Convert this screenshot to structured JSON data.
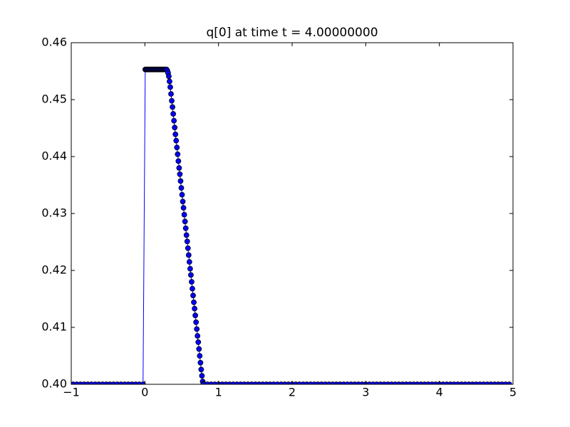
{
  "chart_data": {
    "type": "line",
    "title": "q[0] at time t =     4.00000000",
    "color": "#0000ff",
    "marker_edge_color": "#000000",
    "xlim": [
      -1,
      5
    ],
    "ylim": [
      0.4,
      0.46
    ],
    "xticks": [
      {
        "value": -1,
        "label": "−1"
      },
      0,
      1,
      2,
      3,
      4,
      5
    ],
    "yticks": [
      {
        "value": 0.4,
        "label": "0.40"
      },
      0.41,
      0.42,
      0.43,
      0.44,
      0.45,
      0.46
    ],
    "x": [
      -0.975,
      -0.925,
      -0.875,
      -0.825,
      -0.775,
      -0.725,
      -0.675,
      -0.625,
      -0.575,
      -0.525,
      -0.475,
      -0.425,
      -0.375,
      -0.325,
      -0.275,
      -0.225,
      -0.175,
      -0.125,
      -0.075,
      -0.025,
      0.005,
      0.015,
      0.025,
      0.035,
      0.045,
      0.055,
      0.065,
      0.075,
      0.085,
      0.095,
      0.105,
      0.115,
      0.125,
      0.135,
      0.145,
      0.155,
      0.165,
      0.175,
      0.185,
      0.195,
      0.205,
      0.215,
      0.225,
      0.235,
      0.245,
      0.255,
      0.265,
      0.275,
      0.285,
      0.295,
      0.305,
      0.315,
      0.325,
      0.335,
      0.345,
      0.355,
      0.365,
      0.375,
      0.385,
      0.395,
      0.405,
      0.415,
      0.425,
      0.435,
      0.445,
      0.455,
      0.465,
      0.475,
      0.485,
      0.495,
      0.505,
      0.515,
      0.525,
      0.535,
      0.545,
      0.555,
      0.565,
      0.575,
      0.585,
      0.595,
      0.605,
      0.615,
      0.625,
      0.635,
      0.645,
      0.655,
      0.665,
      0.675,
      0.685,
      0.695,
      0.705,
      0.715,
      0.725,
      0.735,
      0.745,
      0.755,
      0.765,
      0.775,
      0.785,
      0.795,
      0.805,
      0.85,
      0.9,
      0.95,
      1,
      1.05,
      1.1,
      1.15,
      1.2,
      1.25,
      1.3,
      1.35,
      1.4,
      1.45,
      1.5,
      1.55,
      1.6,
      1.65,
      1.7,
      1.75,
      1.8,
      1.85,
      1.9,
      1.95,
      2,
      2.05,
      2.1,
      2.15,
      2.2,
      2.25,
      2.3,
      2.35,
      2.4,
      2.45,
      2.5,
      2.55,
      2.6,
      2.65,
      2.7,
      2.75,
      2.8,
      2.85,
      2.9,
      2.95,
      3,
      3.05,
      3.1,
      3.15,
      3.2,
      3.25,
      3.3,
      3.35,
      3.4,
      3.45,
      3.5,
      3.55,
      3.6,
      3.65,
      3.7,
      3.75,
      3.8,
      3.85,
      3.9,
      3.95,
      4,
      4.05,
      4.1,
      4.15,
      4.2,
      4.25,
      4.3,
      4.35,
      4.4,
      4.45,
      4.5,
      4.55,
      4.6,
      4.65,
      4.7,
      4.75,
      4.8,
      4.85,
      4.9,
      4.95
    ],
    "values": [
      0.4,
      0.4,
      0.4,
      0.4,
      0.4,
      0.4,
      0.4,
      0.4,
      0.4,
      0.4,
      0.4,
      0.4,
      0.4,
      0.4,
      0.4,
      0.4,
      0.4,
      0.4,
      0.4,
      0.4,
      0.4553,
      0.4553,
      0.4553,
      0.4553,
      0.4553,
      0.4553,
      0.4553,
      0.4553,
      0.4553,
      0.4553,
      0.4553,
      0.4553,
      0.4553,
      0.4553,
      0.4553,
      0.4553,
      0.4553,
      0.4553,
      0.4553,
      0.4553,
      0.4553,
      0.4553,
      0.4553,
      0.4553,
      0.4553,
      0.4553,
      0.4553,
      0.4553,
      0.4553,
      0.4553,
      0.4551,
      0.4547,
      0.4541,
      0.4532,
      0.4522,
      0.451,
      0.4498,
      0.4487,
      0.4475,
      0.4463,
      0.4451,
      0.4439,
      0.4428,
      0.4416,
      0.4404,
      0.4392,
      0.438,
      0.4369,
      0.4357,
      0.4345,
      0.4333,
      0.4321,
      0.431,
      0.4298,
      0.4286,
      0.4274,
      0.4262,
      0.4251,
      0.4239,
      0.4227,
      0.4215,
      0.4203,
      0.4192,
      0.418,
      0.4168,
      0.4156,
      0.4144,
      0.4133,
      0.4121,
      0.4109,
      0.4097,
      0.4085,
      0.4074,
      0.4062,
      0.405,
      0.4038,
      0.4026,
      0.4015,
      0.4005,
      0.4001,
      0.4,
      0.4,
      0.4,
      0.4,
      0.4,
      0.4,
      0.4,
      0.4,
      0.4,
      0.4,
      0.4,
      0.4,
      0.4,
      0.4,
      0.4,
      0.4,
      0.4,
      0.4,
      0.4,
      0.4,
      0.4,
      0.4,
      0.4,
      0.4,
      0.4,
      0.4,
      0.4,
      0.4,
      0.4,
      0.4,
      0.4,
      0.4,
      0.4,
      0.4,
      0.4,
      0.4,
      0.4,
      0.4,
      0.4,
      0.4,
      0.4,
      0.4,
      0.4,
      0.4,
      0.4,
      0.4,
      0.4,
      0.4,
      0.4,
      0.4,
      0.4,
      0.4,
      0.4,
      0.4,
      0.4,
      0.4,
      0.4,
      0.4,
      0.4,
      0.4,
      0.4,
      0.4,
      0.4,
      0.4,
      0.4,
      0.4,
      0.4,
      0.4,
      0.4,
      0.4,
      0.4,
      0.4,
      0.4,
      0.4,
      0.4,
      0.4,
      0.4,
      0.4,
      0.4,
      0.4,
      0.4,
      0.4,
      0.4,
      0.4
    ]
  }
}
